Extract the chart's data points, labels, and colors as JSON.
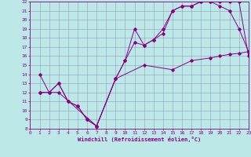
{
  "xlabel": "Windchill (Refroidissement éolien,°C)",
  "xlim": [
    0,
    23
  ],
  "ylim": [
    8,
    22
  ],
  "xticks": [
    0,
    1,
    2,
    3,
    4,
    5,
    6,
    7,
    8,
    9,
    10,
    11,
    12,
    13,
    14,
    15,
    16,
    17,
    18,
    19,
    20,
    21,
    22,
    23
  ],
  "yticks": [
    8,
    9,
    10,
    11,
    12,
    13,
    14,
    15,
    16,
    17,
    18,
    19,
    20,
    21,
    22
  ],
  "background_color": "#bde8e8",
  "line_color": "#880088",
  "grid_color": "#9999bb",
  "line1_x": [
    1,
    2,
    3,
    4,
    5,
    6,
    7,
    9,
    10,
    11,
    12,
    13,
    14,
    15,
    16,
    17,
    18,
    19,
    20,
    21,
    22,
    23
  ],
  "line1_y": [
    14,
    12,
    13,
    11,
    10.5,
    9.0,
    8.3,
    13.5,
    15.5,
    17.5,
    17.2,
    17.8,
    19.0,
    21.0,
    21.5,
    21.5,
    22.0,
    22.0,
    21.5,
    21.0,
    19.0,
    16.5
  ],
  "line2_x": [
    1,
    2,
    3,
    4,
    5,
    6,
    7,
    9,
    10,
    11,
    12,
    13,
    14,
    15,
    16,
    17,
    18,
    19,
    20,
    21,
    22,
    23
  ],
  "line2_y": [
    12,
    12,
    13,
    11,
    10.5,
    9.0,
    8.3,
    13.5,
    15.5,
    19.0,
    17.2,
    17.8,
    18.5,
    21.0,
    21.5,
    21.5,
    22.0,
    22.0,
    22.0,
    22.0,
    22.0,
    16.0
  ],
  "line3_x": [
    1,
    3,
    7,
    9,
    12,
    15,
    17,
    19,
    20,
    21,
    22,
    23
  ],
  "line3_y": [
    12,
    12,
    8.3,
    13.5,
    15.0,
    14.5,
    15.5,
    15.8,
    16.0,
    16.2,
    16.3,
    16.5
  ]
}
